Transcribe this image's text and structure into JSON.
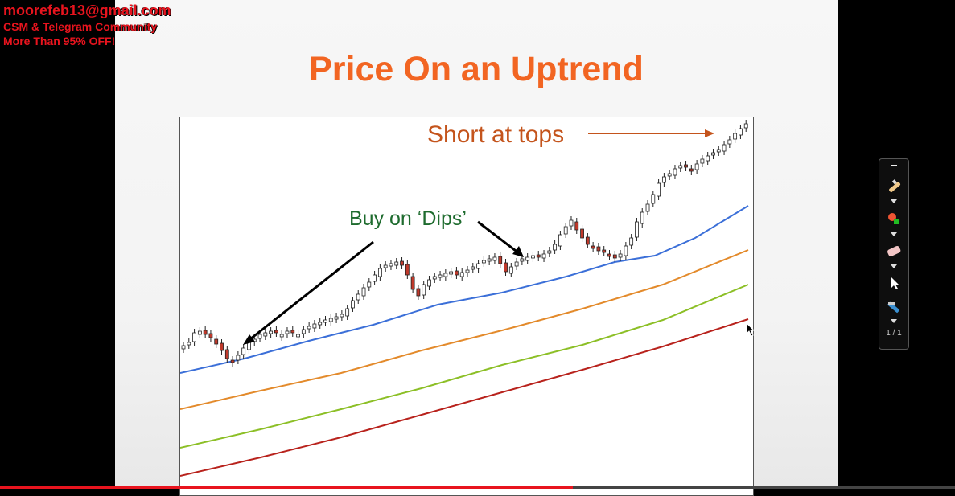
{
  "watermark": {
    "email": "moorefeb13@gmail.com",
    "line1": "CSM & Telegram Community",
    "line2": "More Than 95% OFF!"
  },
  "slide": {
    "title": "Price On an Uptrend",
    "annotations": {
      "buy": "Buy on ‘Dips’",
      "short": "Short at tops"
    }
  },
  "colors": {
    "title": "#f26522",
    "buy_text": "#1e6b2e",
    "short_text": "#c4541c",
    "ma_blue": "#3b6fd8",
    "ma_orange": "#e38a2b",
    "ma_green": "#8cbf26",
    "ma_red": "#b8221c",
    "candle_up": "#ffffff",
    "candle_down": "#c0392b"
  },
  "toolbar": {
    "page_indicator": "1 / 1",
    "tools": [
      "pen-icon",
      "color-picker-icon",
      "eraser-icon",
      "pointer-icon",
      "highlighter-icon"
    ]
  },
  "video": {
    "progress": 0.6
  }
}
